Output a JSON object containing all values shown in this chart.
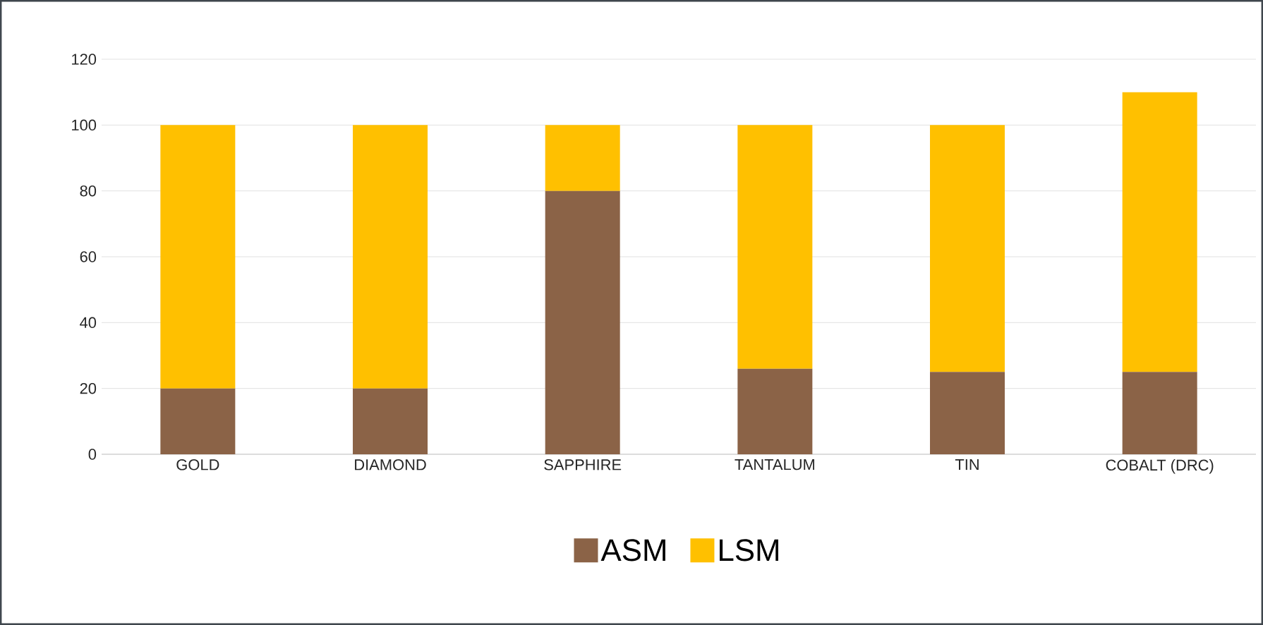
{
  "chart_data": {
    "type": "bar",
    "stacked": true,
    "categories": [
      "GOLD",
      "DIAMOND",
      "SAPPHIRE",
      "TANTALUM",
      "TIN",
      "COBALT (DRC)"
    ],
    "series": [
      {
        "name": "ASM",
        "color": "#8b6347",
        "values": [
          20,
          20,
          80,
          26,
          25,
          25
        ]
      },
      {
        "name": "LSM",
        "color": "#ffc000",
        "values": [
          80,
          80,
          20,
          74,
          75,
          85
        ]
      }
    ],
    "ylim": [
      0,
      120
    ],
    "yticks": [
      0,
      20,
      40,
      60,
      80,
      100,
      120
    ],
    "grid": "y",
    "legend": "bottom"
  }
}
